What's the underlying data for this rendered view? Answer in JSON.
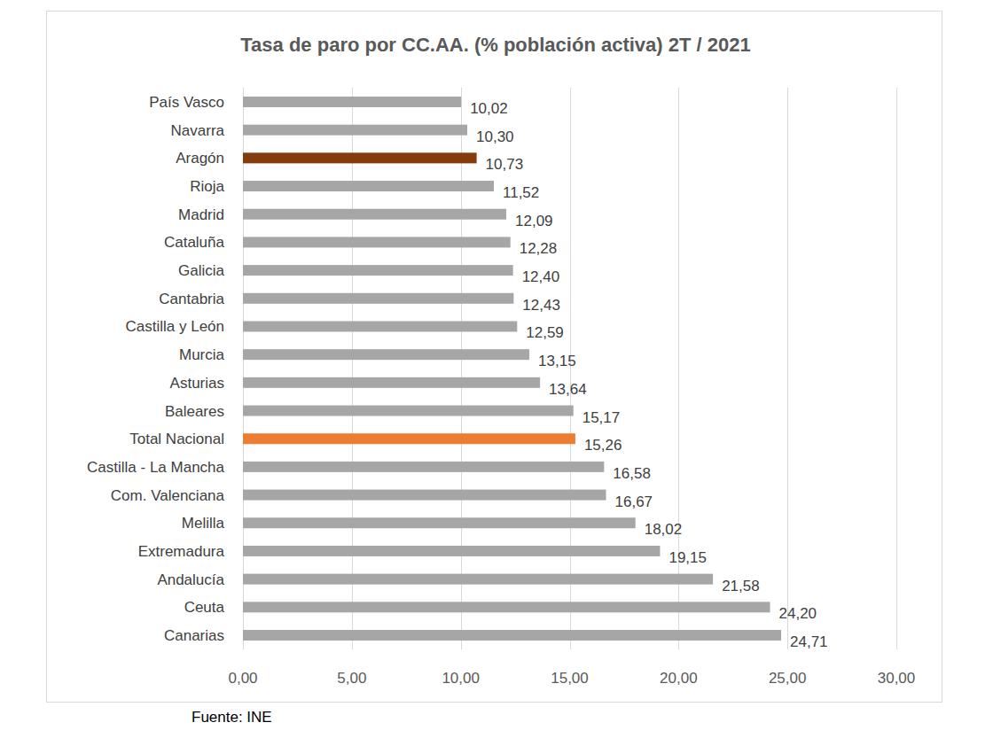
{
  "chart_data": {
    "type": "bar",
    "orientation": "horizontal",
    "title": "Tasa de paro por CC.AA. (% población activa) 2T / 2021",
    "annotations": [
      "Fuente: INE"
    ],
    "categories": [
      "País Vasco",
      "Navarra",
      "Aragón",
      "Rioja",
      "Madrid",
      "Cataluña",
      "Galicia",
      "Cantabria",
      "Castilla y León",
      "Murcia",
      "Asturias",
      "Baleares",
      "Total Nacional",
      "Castilla - La Mancha",
      "Com. Valenciana",
      "Melilla",
      "Extremadura",
      "Andalucía",
      "Ceuta",
      "Canarias"
    ],
    "values": [
      10.02,
      10.3,
      10.73,
      11.52,
      12.09,
      12.28,
      12.4,
      12.43,
      12.59,
      13.15,
      13.64,
      15.17,
      15.26,
      16.58,
      16.67,
      18.02,
      19.15,
      21.58,
      24.2,
      24.71
    ],
    "value_labels": [
      "10,02",
      "10,30",
      "10,73",
      "11,52",
      "12,09",
      "12,28",
      "12,40",
      "12,43",
      "12,59",
      "13,15",
      "13,64",
      "15,17",
      "15,26",
      "16,58",
      "16,67",
      "18,02",
      "19,15",
      "21,58",
      "24,20",
      "24,71"
    ],
    "colors": [
      "#a6a6a6",
      "#a6a6a6",
      "#843c0c",
      "#a6a6a6",
      "#a6a6a6",
      "#a6a6a6",
      "#a6a6a6",
      "#a6a6a6",
      "#a6a6a6",
      "#a6a6a6",
      "#a6a6a6",
      "#a6a6a6",
      "#ed7d31",
      "#a6a6a6",
      "#a6a6a6",
      "#a6a6a6",
      "#a6a6a6",
      "#a6a6a6",
      "#a6a6a6",
      "#a6a6a6"
    ],
    "xlim": [
      0,
      30
    ],
    "xticks": [
      {
        "value": 0,
        "label": "0,00"
      },
      {
        "value": 5,
        "label": "5,00"
      },
      {
        "value": 10,
        "label": "10,00"
      },
      {
        "value": 15,
        "label": "15,00"
      },
      {
        "value": 20,
        "label": "20,00"
      },
      {
        "value": 25,
        "label": "25,00"
      },
      {
        "value": 30,
        "label": "30,00"
      }
    ],
    "grid": true,
    "data_labels": true
  }
}
